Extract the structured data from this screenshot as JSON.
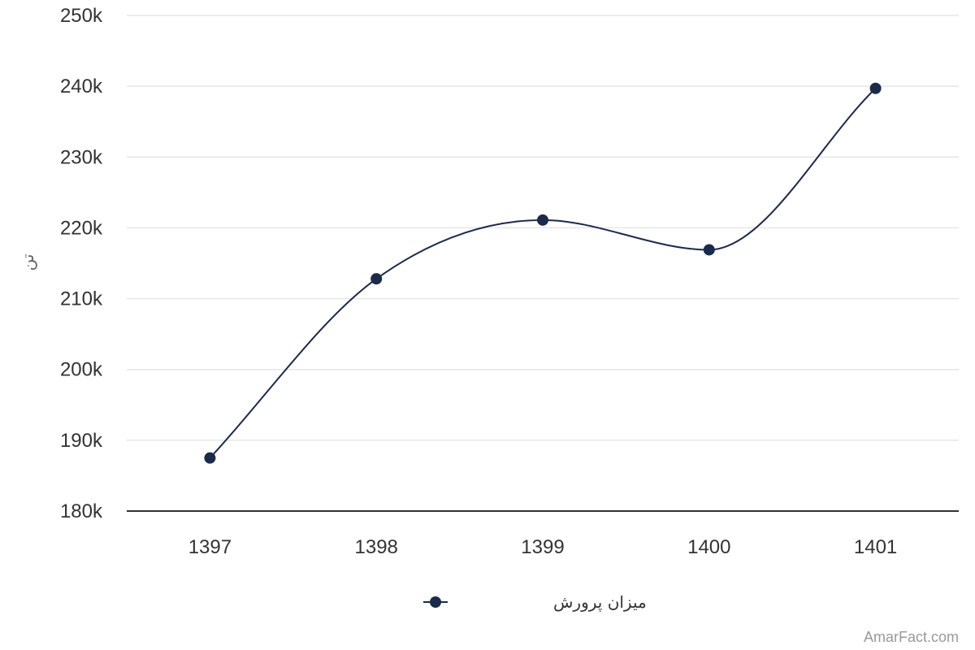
{
  "chart_data": {
    "type": "line",
    "title": "",
    "xlabel": "",
    "ylabel": "تن",
    "categories": [
      "1397",
      "1398",
      "1399",
      "1400",
      "1401"
    ],
    "series": [
      {
        "name": "میزان پرورش",
        "values": [
          187500,
          212800,
          221100,
          216900,
          239700
        ]
      }
    ],
    "ylim": [
      180000,
      250000
    ],
    "y_ticks": [
      "180k",
      "190k",
      "200k",
      "210k",
      "220k",
      "230k",
      "240k",
      "250k"
    ],
    "smooth": true,
    "grid": true,
    "legend_position": "bottom-center",
    "colors": {
      "series": "#1c2a4a",
      "grid": "#e6e6e6",
      "axis": "#333333"
    }
  },
  "credit": "AmarFact.com"
}
